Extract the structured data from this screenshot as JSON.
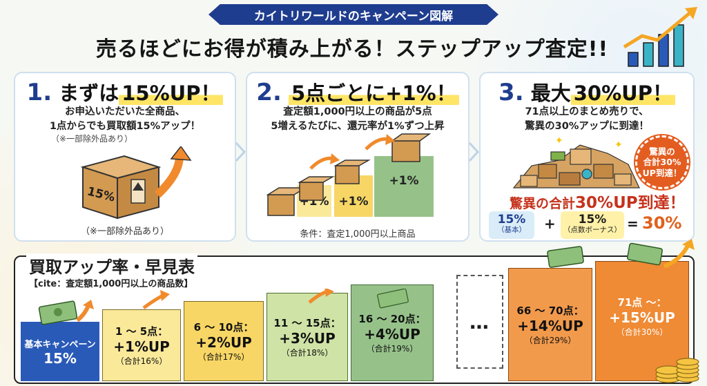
{
  "header": {
    "ribbon": "カイトリワールドのキャンペーン図解",
    "title": "売るほどにお得が積み上がる！ステップアップ査定!!"
  },
  "steps": [
    {
      "number": "1.",
      "title_pre": "まずは",
      "title_hl": "15%UP！",
      "lines": [
        "お申込いただいた全商品、",
        "1点からでも買取額15%アップ！"
      ],
      "note": "（※一部除外品あり）",
      "box_label": "15%",
      "bottom_note": "（※一部除外品あり）"
    },
    {
      "number": "2.",
      "title_hl": "5点ごとに+1%！",
      "lines": [
        "査定額1,000円以上の商品が5点",
        "5増えるたびに、還元率が1%ずつ上昇"
      ],
      "stair_labels": [
        "+1%",
        "+1%",
        "+1%"
      ],
      "bottom_note": "条件：査定1,000円以上商品"
    },
    {
      "number": "3.",
      "title_pre": "最大",
      "title_hl": "30%UP！",
      "lines": [
        "71点以上のまとめ売りで、",
        "驚異の30%アップに到達！"
      ],
      "badge_lines": [
        "驚異の",
        "合計30%",
        "UP到達！"
      ],
      "pile_caption_pre": "驚異の合計",
      "pile_caption_big": "30%UP到達！",
      "eq_left_value": "15%",
      "eq_left_sub": "（基本）",
      "eq_plus": "+",
      "eq_right_value": "15%",
      "eq_right_sub": "（点数ボーナス）",
      "eq_equals": "=",
      "eq_result": "30%"
    }
  ],
  "table": {
    "title": "買取アップ率・早見表",
    "subtitle": "【cite：査定額1,000円以上の商品数】",
    "base_label": "基本キャンペーン",
    "base_rate": "15%",
    "ellipsis": "…",
    "tiers": [
      {
        "range": "1 ～ 5点：",
        "up": "+1%UP",
        "total": "（合計16%）"
      },
      {
        "range": "6 ～ 10点：",
        "up": "+2%UP",
        "total": "（合計17%）"
      },
      {
        "range": "11 ～ 15点：",
        "up": "+3%UP",
        "total": "（合計18%）"
      },
      {
        "range": "16 ～ 20点：",
        "up": "+4%UP",
        "total": "（合計19%）"
      },
      {
        "range": "66 ～ 70点：",
        "up": "+14%UP",
        "total": "（合計29%）"
      },
      {
        "range": "71点 ～：",
        "up": "+15%UP",
        "total": "（合計30%）"
      }
    ]
  },
  "colors": {
    "navy": "#1f3d8f",
    "orange": "#e0601c",
    "base_blue": "#2a5ab8",
    "tier_yellow_light": "#fbe99a",
    "tier_yellow": "#f7d665",
    "tier_green_light": "#cfe3a6",
    "tier_green": "#96c28a",
    "tier_orange": "#f29a4c",
    "tier_orange_deep": "#ef8a35"
  }
}
